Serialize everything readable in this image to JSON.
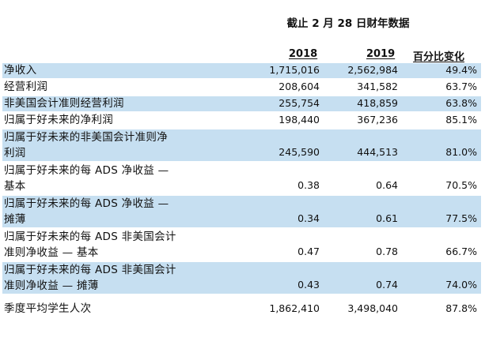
{
  "title": "截止 2 月 28 日财年数据",
  "headers": {
    "year1": "2018",
    "year2": "2019",
    "change": "百分比变化"
  },
  "rows": [
    {
      "label": "净收入",
      "v2018": "1,715,016",
      "v2019": "2,562,984",
      "change": "49.4%"
    },
    {
      "label": "经营利润",
      "v2018": "208,604",
      "v2019": "341,582",
      "change": "63.7%"
    },
    {
      "label": "非美国会计准则经营利润",
      "v2018": "255,754",
      "v2019": "418,859",
      "change": "63.8%"
    },
    {
      "label": "归属于好未来的净利润",
      "v2018": "198,440",
      "v2019": "367,236",
      "change": "85.1%"
    },
    {
      "label": "归属于好未来的非美国会计准则净\n利润",
      "v2018": "245,590",
      "v2019": "444,513",
      "change": "81.0%"
    },
    {
      "label": "归属于好未来的每 ADS 净收益 —\n基本",
      "v2018": "0.38",
      "v2019": "0.64",
      "change": "70.5%"
    },
    {
      "label": "归属于好未来的每 ADS 净收益 —\n摊薄",
      "v2018": "0.34",
      "v2019": "0.61",
      "change": "77.5%"
    },
    {
      "label": "归属于好未来的每 ADS 非美国会计\n准则净收益 — 基本",
      "v2018": "0.47",
      "v2019": "0.78",
      "change": "66.7%"
    },
    {
      "label": "归属于好未来的每 ADS 非美国会计\n准则净收益 — 摊薄",
      "v2018": "0.43",
      "v2019": "0.74",
      "change": "74.0%"
    },
    {
      "label": "季度平均学生人次",
      "v2018": "1,862,410",
      "v2019": "3,498,040",
      "change": "87.8%"
    }
  ],
  "colors": {
    "shade": "#c6dff1",
    "text": "#111111"
  }
}
